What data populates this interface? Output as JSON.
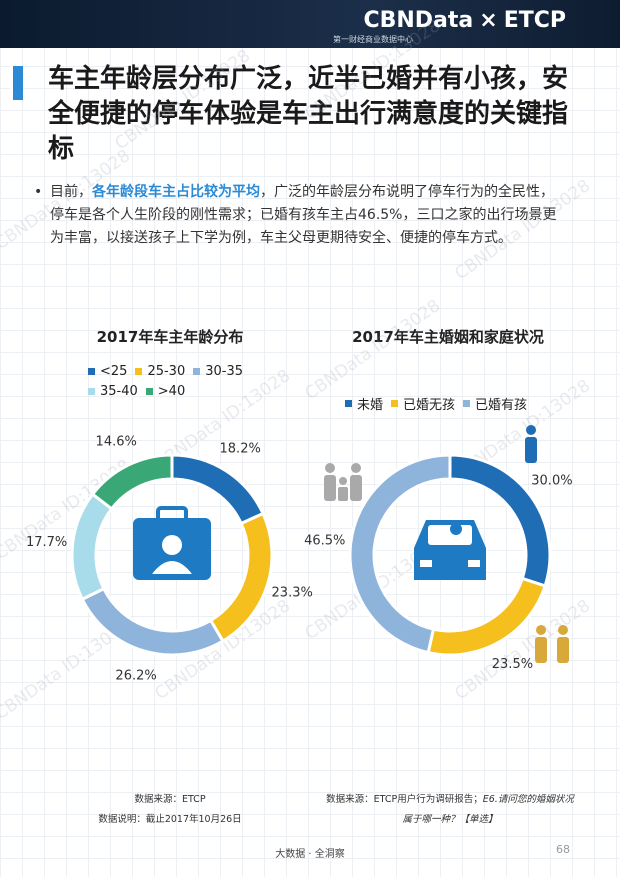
{
  "header": {
    "brand": "CBNData",
    "times": "×",
    "partner": "ETCP",
    "subtitle": "第一财经商业数据中心"
  },
  "title": "车主年龄层分布广泛，近半已婚并有小孩，安全便捷的停车体验是车主出行满意度的关键指标",
  "bullet": {
    "marker": "•",
    "lead": "目前，",
    "highlight": "各年龄段车主占比较为平均",
    "rest": "，广泛的年龄层分布说明了停车行为的全民性，停车是各个人生阶段的刚性需求；已婚有孩车主占46.5%，三口之家的出行场景更为丰富，以接送孩子上下学为例，车主父母更期待安全、便捷的停车方式。"
  },
  "chart_data": [
    {
      "type": "pie",
      "title": "2017年车主年龄分布",
      "categories": [
        "<25",
        "25-30",
        "30-35",
        "35-40",
        ">40"
      ],
      "values": [
        18.2,
        23.3,
        26.2,
        17.7,
        14.6
      ],
      "value_labels": [
        "18.2%",
        "23.3%",
        "26.2%",
        "17.7%",
        "14.6%"
      ],
      "colors": [
        "#1f6db5",
        "#f5bf1e",
        "#8fb4dc",
        "#a9dcea",
        "#3aa876"
      ]
    },
    {
      "type": "pie",
      "title": "2017年车主婚姻和家庭状况",
      "categories": [
        "未婚",
        "已婚无孩",
        "已婚有孩"
      ],
      "values": [
        30.0,
        23.5,
        46.5
      ],
      "value_labels": [
        "30.0%",
        "23.5%",
        "46.5%"
      ],
      "colors": [
        "#1f6db5",
        "#f5bf1e",
        "#8fb4dc"
      ]
    }
  ],
  "sources": {
    "left_source": "数据来源：ETCP",
    "left_note": "数据说明：截止2017年10月26日",
    "right_source": "数据来源：ETCP用户行为调研报告；",
    "right_question": "E6.请问您的婚姻状况属于哪一种？【单选】"
  },
  "watermark": "CBNData ID:13028",
  "footer": "大数据 · 全洞察",
  "page_number": "68"
}
